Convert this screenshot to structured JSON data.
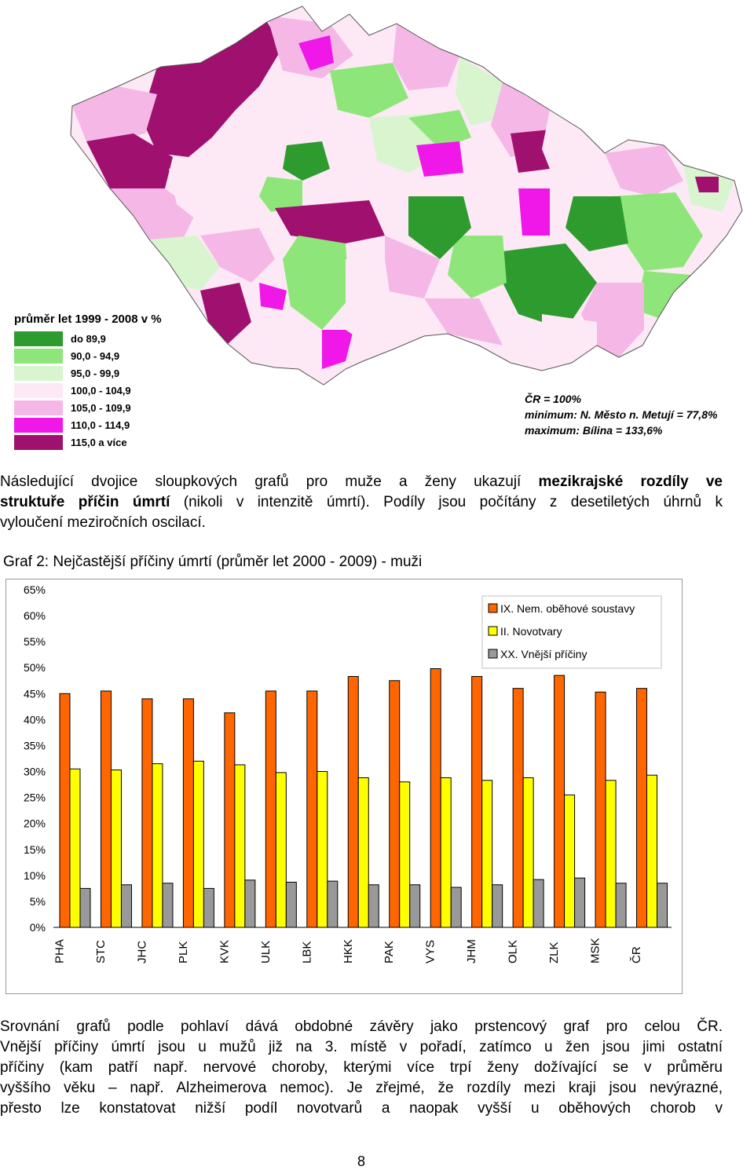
{
  "map": {
    "legend_title": "průměr let 1999 - 2008 v  %",
    "legend": [
      {
        "label": "do 89,9",
        "color": "#2e9b2e"
      },
      {
        "label": "90,0  -  94,9",
        "color": "#8ee67a"
      },
      {
        "label": "95,0  -  99,9",
        "color": "#d8f5d0"
      },
      {
        "label": "100,0 - 104,9",
        "color": "#fde9f6"
      },
      {
        "label": "105,0 - 109,9",
        "color": "#f5b8e6"
      },
      {
        "label": "110,0 - 114,9",
        "color": "#f018e8"
      },
      {
        "label": "115,0 a více",
        "color": "#a0106e"
      }
    ],
    "note_1": "ČR = 100%",
    "note_2": "minimum: N. Město n. Metují = 77,8%",
    "note_3": "maximum: Bílina = 133,6%"
  },
  "paragraph_1": {
    "l1_a": "Následující dvojice sloupkových grafů pro muže a ženy ukazují ",
    "l1_b": "mezikrajské rozdíly ve",
    "l2_a": "struktuře příčin úmrtí",
    "l2_b": " (nikoli v intenzitě úmrtí). Podíly jsou počítány z desetiletých úhrnů k",
    "l3": "vyloučení meziročních oscilací."
  },
  "graph_title": "Graf 2: Nejčastější příčiny úmrtí (průměr let 2000 - 2009) - muži",
  "chart_data": {
    "type": "bar",
    "title": "",
    "xlabel": "",
    "ylabel": "",
    "ylim": [
      0,
      65
    ],
    "y_ticks": [
      "0%",
      "5%",
      "10%",
      "15%",
      "20%",
      "25%",
      "30%",
      "35%",
      "40%",
      "45%",
      "50%",
      "55%",
      "60%",
      "65%"
    ],
    "grid": false,
    "legend_position": "top-right",
    "categories": [
      "PHA",
      "STC",
      "JHC",
      "PLK",
      "KVK",
      "ULK",
      "LBK",
      "HKK",
      "PAK",
      "VYS",
      "JHM",
      "OLK",
      "ZLK",
      "MSK",
      "ČR"
    ],
    "series": [
      {
        "name": "IX. Nem. oběhové soustavy",
        "color": "#ff6600",
        "values": [
          45.0,
          45.5,
          44.0,
          44.0,
          41.3,
          45.5,
          45.5,
          48.3,
          47.5,
          49.8,
          48.3,
          46.0,
          48.5,
          45.3,
          46.0
        ]
      },
      {
        "name": "II. Novotvary",
        "color": "#ffff00",
        "values": [
          30.5,
          30.3,
          31.5,
          32.0,
          31.3,
          29.8,
          30.0,
          28.8,
          28.0,
          28.8,
          28.3,
          28.8,
          25.5,
          28.3,
          29.3
        ]
      },
      {
        "name": "XX. Vnější příčiny",
        "color": "#999999",
        "values": [
          7.5,
          8.2,
          8.5,
          7.5,
          9.1,
          8.7,
          8.9,
          8.2,
          8.2,
          7.7,
          8.2,
          9.2,
          9.5,
          8.5,
          8.5
        ]
      }
    ]
  },
  "paragraph_2": {
    "l1": "Srovnání grafů podle pohlaví dává obdobné závěry jako prstencový graf pro celou ČR.",
    "l2": "Vnější příčiny úmrtí jsou u mužů již na 3. místě v pořadí, zatímco u žen jsou jimi ostatní",
    "l3": "příčiny (kam patří např. nervové choroby, kterými více trpí ženy dožívající se v průměru",
    "l4": "vyššího věku – např. Alzheimerova nemoc). Je zřejmé, že rozdíly mezi kraji jsou nevýrazné,",
    "l5": "přesto lze konstatovat nižší podíl novotvarů a naopak vyšší u oběhových chorob v"
  },
  "page_number": "8"
}
